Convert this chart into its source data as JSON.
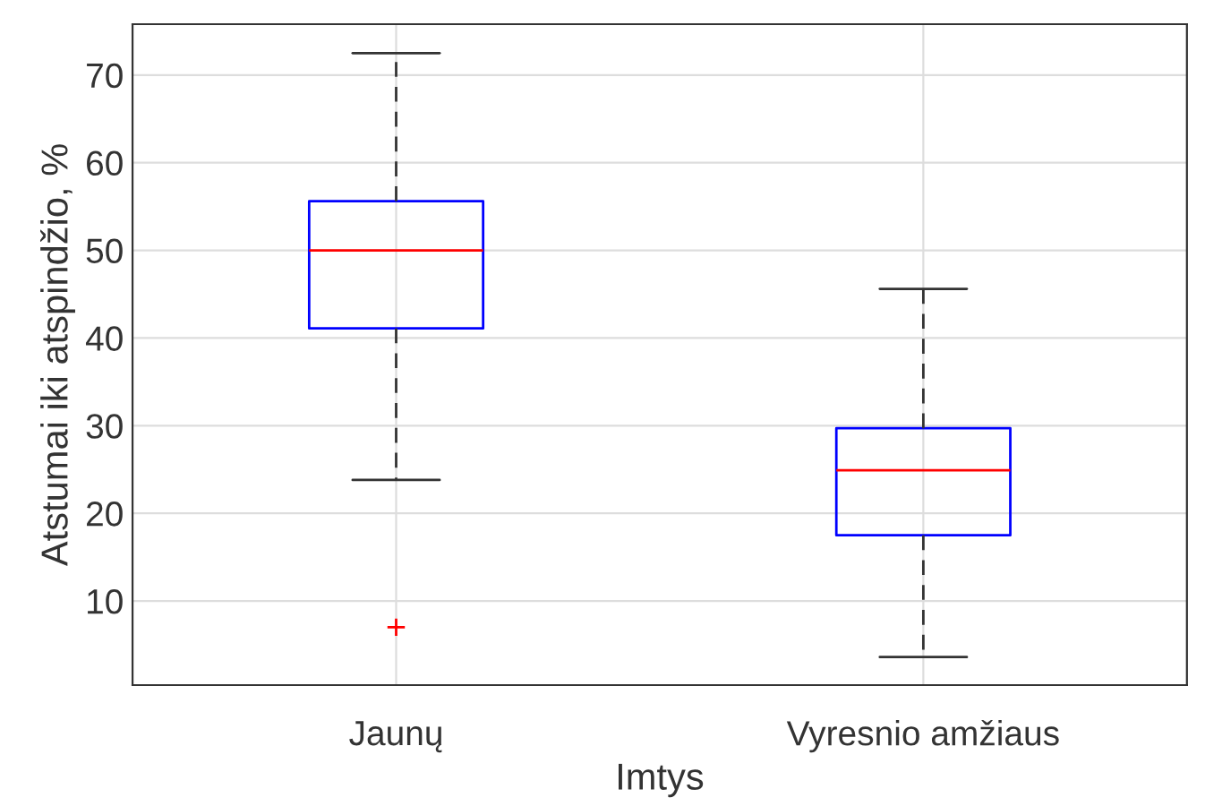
{
  "chart_data": {
    "type": "box",
    "xlabel": "Imtys",
    "ylabel": "Atstumai iki atspindžio, %",
    "categories": [
      "Jaunų",
      "Vyresnio amžiaus"
    ],
    "series": [
      {
        "color": "#0000ff",
        "boxes": [
          {
            "low": 23.8,
            "q1": 41.1,
            "median": 50,
            "q3": 55.6,
            "high": 72.5,
            "outliers": [
              7.0
            ]
          },
          {
            "low": 3.6,
            "q1": 17.5,
            "median": 24.9,
            "q3": 29.7,
            "high": 45.6
          }
        ]
      }
    ],
    "ylim": [
      0.4,
      75.8
    ],
    "yticks": [
      10,
      20,
      30,
      40,
      50,
      60,
      70
    ],
    "grid": true
  }
}
